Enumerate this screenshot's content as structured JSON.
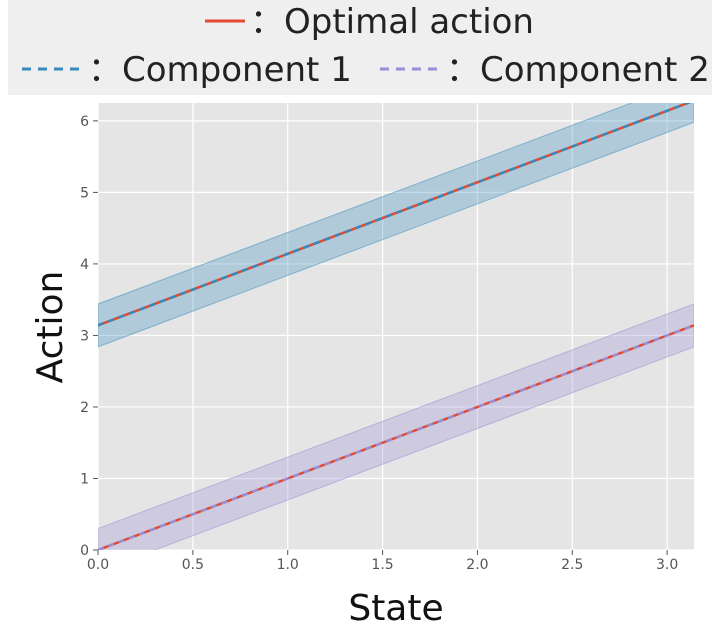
{
  "chart_data": {
    "type": "line",
    "title": "",
    "xlabel": "State",
    "ylabel": "Action",
    "xlim": [
      0,
      3.14159
    ],
    "ylim": [
      0,
      6.25
    ],
    "x_ticks": [
      "0.0",
      "0.5",
      "1.0",
      "1.5",
      "2.0",
      "2.5",
      "3.0"
    ],
    "x_tick_values": [
      0,
      0.5,
      1.0,
      1.5,
      2.0,
      2.5,
      3.0
    ],
    "y_ticks": [
      "0",
      "1",
      "2",
      "3",
      "4",
      "5",
      "6"
    ],
    "y_tick_values": [
      0,
      1,
      2,
      3,
      4,
      5,
      6
    ],
    "grid": true,
    "legend_position": "top",
    "legend": {
      "optimal": "：Optimal action",
      "component1": "：Component 1",
      "component2": "：Component 2"
    },
    "series": [
      {
        "name": "Component 1",
        "style": "dashed",
        "color": "#348abd",
        "x": [
          0,
          3.14159
        ],
        "y": [
          3.14159,
          6.28318
        ],
        "band_lower": [
          2.84,
          5.98
        ],
        "band_upper": [
          3.44,
          6.58
        ],
        "band_color": "#348abd"
      },
      {
        "name": "Component 2",
        "style": "dashed",
        "color": "#988ed5",
        "x": [
          0,
          3.14159
        ],
        "y": [
          0,
          3.14159
        ],
        "band_lower": [
          -0.3,
          2.84
        ],
        "band_upper": [
          0.3,
          3.44
        ],
        "band_color": "#988ed5"
      },
      {
        "name": "Optimal action",
        "style": "solid",
        "color": "#e24a33",
        "segments": [
          {
            "x": [
              0,
              3.14159
            ],
            "y": [
              3.14159,
              6.28318
            ]
          },
          {
            "x": [
              0,
              3.14159
            ],
            "y": [
              0,
              3.14159
            ]
          }
        ]
      }
    ]
  }
}
